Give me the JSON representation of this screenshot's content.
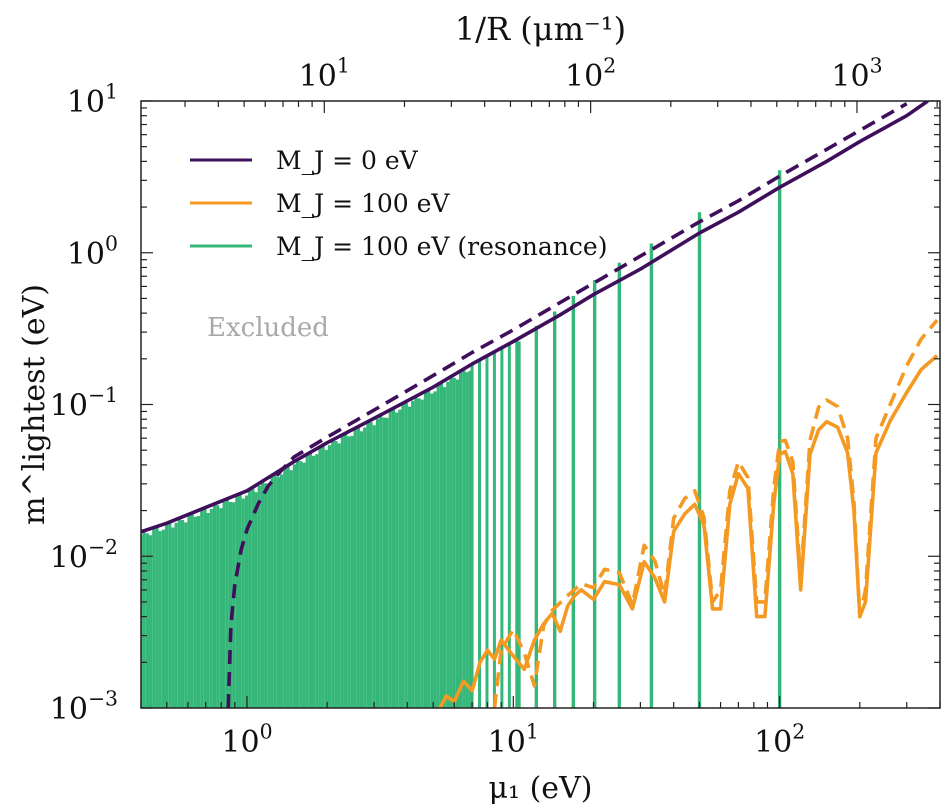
{
  "chart_data": {
    "type": "line",
    "xlabel": "μ₁ (eV)",
    "ylabel": "m^lightest (eV)",
    "top_xlabel": "1/R (μm⁻¹)",
    "xscale": "log",
    "yscale": "log",
    "xlim": [
      0.4,
      400
    ],
    "ylim": [
      0.001,
      10
    ],
    "top_xlim": [
      2.05,
      2050
    ],
    "x_ticks": [
      {
        "value": 1,
        "base": "10",
        "exp": "0"
      },
      {
        "value": 10,
        "base": "10",
        "exp": "1"
      },
      {
        "value": 100,
        "base": "10",
        "exp": "2"
      }
    ],
    "top_ticks": [
      {
        "value": 10,
        "base": "10",
        "exp": "1"
      },
      {
        "value": 100,
        "base": "10",
        "exp": "2"
      },
      {
        "value": 1000,
        "base": "10",
        "exp": "3"
      }
    ],
    "y_ticks": [
      {
        "value": 0.001,
        "base": "10",
        "exp": "−3"
      },
      {
        "value": 0.01,
        "base": "10",
        "exp": "−2"
      },
      {
        "value": 0.1,
        "base": "10",
        "exp": "−1"
      },
      {
        "value": 1,
        "base": "10",
        "exp": "0"
      },
      {
        "value": 10,
        "base": "10",
        "exp": "1"
      }
    ],
    "annotation": "Excluded",
    "legend": {
      "placement": "top-left",
      "entries": [
        {
          "label": "M_J = 0 eV",
          "color": "#3f0f5c"
        },
        {
          "label": "M_J = 100 eV",
          "color": "#f49a22"
        },
        {
          "label": "M_J = 100 eV (resonance)",
          "color": "#35b779"
        }
      ]
    },
    "series": [
      {
        "name": "M_J = 0 eV (solid)",
        "color": "#3f0f5c",
        "style": "solid",
        "x": [
          0.4,
          0.5,
          0.7,
          1.0,
          1.5,
          2.0,
          3.0,
          5.0,
          7.0,
          10,
          15,
          20,
          30,
          50,
          70,
          100,
          150,
          200,
          300,
          360
        ],
        "y": [
          0.0145,
          0.0165,
          0.021,
          0.027,
          0.042,
          0.056,
          0.081,
          0.13,
          0.185,
          0.26,
          0.39,
          0.53,
          0.78,
          1.35,
          1.85,
          2.7,
          4.0,
          5.4,
          8.0,
          10.0
        ]
      },
      {
        "name": "M_J = 0 eV (dashed)",
        "color": "#3f0f5c",
        "style": "dashed",
        "x": [
          0.85,
          0.87,
          0.9,
          0.95,
          1.0,
          1.1,
          1.2,
          1.35,
          1.5,
          1.75,
          2.0,
          3.0,
          5.0,
          7.0,
          10,
          15,
          20,
          30,
          50,
          70,
          100,
          150,
          200,
          300
        ],
        "y": [
          0.001,
          0.0035,
          0.0065,
          0.011,
          0.015,
          0.022,
          0.029,
          0.037,
          0.045,
          0.053,
          0.061,
          0.092,
          0.155,
          0.22,
          0.31,
          0.47,
          0.63,
          0.95,
          1.6,
          2.2,
          3.2,
          4.8,
          6.4,
          9.6
        ]
      },
      {
        "name": "M_J = 100 eV (solid)",
        "color": "#f49a22",
        "style": "solid",
        "x": [
          5.3,
          5.6,
          6.0,
          6.5,
          7.0,
          7.5,
          8.0,
          8.5,
          9.0,
          10,
          11,
          12,
          13,
          14,
          15,
          16,
          17,
          18,
          20,
          22,
          25,
          28,
          31,
          34,
          37,
          40,
          44,
          48,
          52,
          56,
          60,
          65,
          70,
          76,
          82,
          88,
          95,
          100,
          105,
          112,
          120,
          130,
          140,
          150,
          165,
          180,
          190,
          200,
          210,
          230,
          260,
          300,
          340,
          390
        ],
        "y": [
          0.001,
          0.0012,
          0.0011,
          0.0015,
          0.0013,
          0.002,
          0.0024,
          0.0021,
          0.0028,
          0.0022,
          0.0018,
          0.0028,
          0.0036,
          0.0042,
          0.0032,
          0.0047,
          0.0055,
          0.006,
          0.0052,
          0.0068,
          0.0065,
          0.0045,
          0.0092,
          0.0072,
          0.005,
          0.0146,
          0.019,
          0.022,
          0.016,
          0.0045,
          0.0045,
          0.022,
          0.035,
          0.028,
          0.004,
          0.004,
          0.022,
          0.047,
          0.049,
          0.035,
          0.006,
          0.047,
          0.068,
          0.077,
          0.071,
          0.048,
          0.02,
          0.004,
          0.005,
          0.048,
          0.078,
          0.12,
          0.17,
          0.21
        ]
      },
      {
        "name": "M_J = 100 eV (dashed)",
        "color": "#f49a22",
        "style": "dashed",
        "x": [
          8.5,
          9.0,
          10,
          11,
          12,
          13,
          14,
          16,
          18,
          20,
          22,
          25,
          28,
          31,
          34,
          37,
          40,
          44,
          48,
          52,
          56,
          60,
          65,
          70,
          76,
          82,
          88,
          95,
          100,
          105,
          112,
          120,
          130,
          140,
          150,
          165,
          180,
          190,
          200,
          210,
          230,
          260,
          300,
          340,
          390
        ],
        "y": [
          0.001,
          0.0024,
          0.0033,
          0.0023,
          0.0014,
          0.0035,
          0.0044,
          0.0055,
          0.0066,
          0.0062,
          0.0082,
          0.0078,
          0.0048,
          0.0118,
          0.0093,
          0.0055,
          0.0178,
          0.024,
          0.027,
          0.018,
          0.005,
          0.006,
          0.027,
          0.042,
          0.033,
          0.005,
          0.005,
          0.028,
          0.057,
          0.058,
          0.042,
          0.007,
          0.058,
          0.096,
          0.107,
          0.097,
          0.06,
          0.023,
          0.004,
          0.006,
          0.06,
          0.1,
          0.18,
          0.27,
          0.36
        ]
      },
      {
        "name": "M_J = 100 eV (resonance)",
        "color": "#35b779",
        "style": "spikes",
        "x_start": 0.4,
        "x_end": 7.0,
        "spike_spacing_log10": 0.012,
        "major_spikes": [
          {
            "x": 10.5,
            "y": 0.26
          },
          {
            "x": 12.2,
            "y": 0.33
          },
          {
            "x": 14.3,
            "y": 0.41
          },
          {
            "x": 16.8,
            "y": 0.52
          },
          {
            "x": 20.2,
            "y": 0.66
          },
          {
            "x": 25.0,
            "y": 0.86
          },
          {
            "x": 33.0,
            "y": 1.15
          },
          {
            "x": 50.0,
            "y": 1.85
          },
          {
            "x": 100.0,
            "y": 3.5
          }
        ]
      }
    ]
  }
}
